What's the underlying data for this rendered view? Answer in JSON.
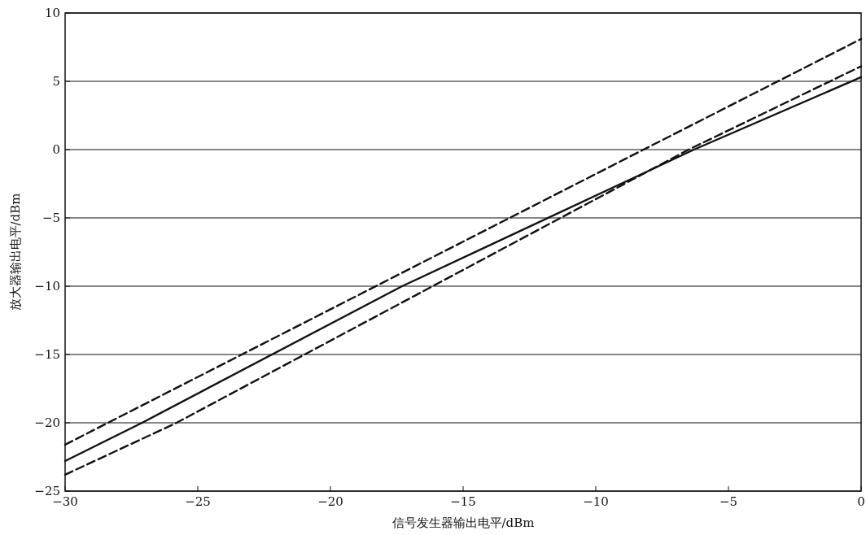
{
  "chart_data": {
    "type": "line",
    "xlabel": "信号发生器输出电平/dBm",
    "ylabel": "放大器输出电平/dBm",
    "xlim": [
      -30,
      0
    ],
    "ylim": [
      -25,
      10
    ],
    "xticks": [
      -30,
      -25,
      -20,
      -15,
      -10,
      -5,
      0
    ],
    "yticks": [
      -25,
      -20,
      -15,
      -10,
      -5,
      0,
      5,
      10
    ],
    "grid": "y",
    "marker": "none",
    "series": [
      {
        "color": "#111111",
        "line_style": "dashed",
        "x": [
          -30,
          -8.2,
          0
        ],
        "values": [
          -21.6,
          0,
          8.1
        ]
      },
      {
        "color": "#111111",
        "line_style": "solid",
        "x": [
          -30,
          -27.1,
          -17.3,
          -14,
          -6.3,
          0
        ],
        "values": [
          -22.8,
          -20,
          -10,
          -7,
          0,
          5.3
        ]
      },
      {
        "color": "#111111",
        "line_style": "dashed",
        "x": [
          -30,
          -25.8,
          -6.5,
          0
        ],
        "values": [
          -23.8,
          -20,
          0,
          6.1
        ]
      }
    ]
  }
}
